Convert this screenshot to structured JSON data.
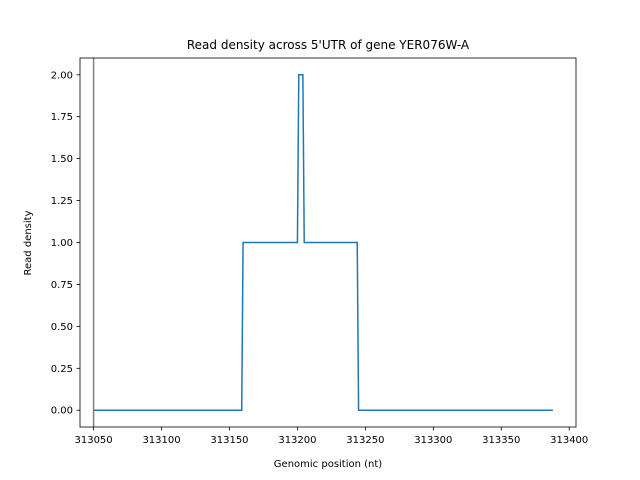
{
  "chart_data": {
    "type": "line",
    "title": "Read density across 5'UTR of gene YER076W-A",
    "xlabel": "Genomic position (nt)",
    "ylabel": "Read density",
    "xlim": [
      313040,
      313405
    ],
    "ylim": [
      -0.1,
      2.1
    ],
    "xticks": [
      313050,
      313100,
      313150,
      313200,
      313250,
      313300,
      313350,
      313400
    ],
    "yticks": [
      0.0,
      0.25,
      0.5,
      0.75,
      1.0,
      1.25,
      1.5,
      1.75,
      2.0
    ],
    "xtick_labels": [
      "313050",
      "313100",
      "313150",
      "313200",
      "313250",
      "313300",
      "313350",
      "313400"
    ],
    "ytick_labels": [
      "0.00",
      "0.25",
      "0.50",
      "0.75",
      "1.00",
      "1.25",
      "1.50",
      "1.75",
      "2.00"
    ],
    "grid": false,
    "vline": {
      "x": 313050,
      "color": "#808080"
    },
    "series": [
      {
        "color": "#1f77b4",
        "x": [
          313050,
          313159,
          313160,
          313200,
          313201,
          313204,
          313205,
          313244,
          313245,
          313388
        ],
        "y": [
          0,
          0,
          1,
          1,
          2,
          2,
          1,
          1,
          0,
          0
        ]
      }
    ]
  }
}
